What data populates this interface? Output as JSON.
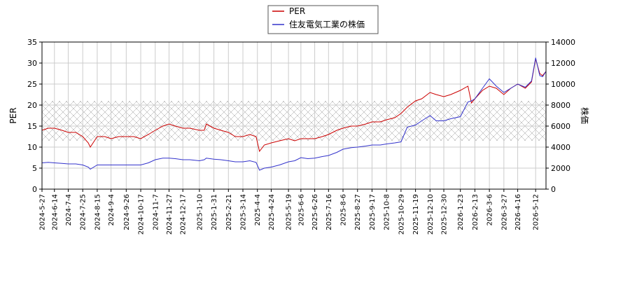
{
  "chart_data": {
    "type": "line",
    "legend": {
      "placement": "top-center",
      "entries": [
        {
          "label": "PER",
          "color": "#cc0000"
        },
        {
          "label": "住友電気工業の株価",
          "color": "#3333cc"
        }
      ]
    },
    "ylabel_left": "PER",
    "ylabel_right": "株価",
    "ylim_left": [
      0,
      35
    ],
    "ylim_right": [
      0,
      14000
    ],
    "yticks_left": [
      "0",
      "5",
      "10",
      "15",
      "20",
      "25",
      "30",
      "35"
    ],
    "yticks_right": [
      "0",
      "2000",
      "4000",
      "6000",
      "8000",
      "10000",
      "12000",
      "14000"
    ],
    "band": {
      "from": 11.5,
      "to": 21,
      "axis": "left"
    },
    "grid": true,
    "xlim": [
      "2024-05-27",
      "2026-05-27"
    ],
    "xticks": [
      "2024-5-27",
      "2024-6-14",
      "2024-7-4",
      "2024-7-25",
      "2024-8-15",
      "2024-9-4",
      "2024-9-26",
      "2024-10-17",
      "2024-11-7",
      "2024-11-27",
      "2024-12-17",
      "2025-1-10",
      "2025-1-31",
      "2025-2-21",
      "2025-3-14",
      "2025-4-4",
      "2025-4-24",
      "2025-5-19",
      "2025-6-6",
      "2025-6-26",
      "2025-7-16",
      "2025-8-6",
      "2025-8-27",
      "2025-9-17",
      "2025-10-8",
      "2025-10-29",
      "2025-11-19",
      "2025-12-10",
      "2025-12-30",
      "2026-1-23",
      "2026-2-13",
      "2026-3-6",
      "2026-3-27",
      "2026-4-16",
      "2026-5-12"
    ],
    "series": [
      {
        "name": "PER",
        "axis": "left",
        "color": "#cc0000",
        "x": [
          "2024-05-27",
          "2024-06-05",
          "2024-06-14",
          "2024-06-25",
          "2024-07-04",
          "2024-07-15",
          "2024-07-25",
          "2024-08-02",
          "2024-08-05",
          "2024-08-15",
          "2024-08-26",
          "2024-09-04",
          "2024-09-15",
          "2024-09-26",
          "2024-10-07",
          "2024-10-17",
          "2024-10-28",
          "2024-11-07",
          "2024-11-18",
          "2024-11-27",
          "2024-12-06",
          "2024-12-17",
          "2024-12-27",
          "2025-01-10",
          "2025-01-17",
          "2025-01-20",
          "2025-01-31",
          "2025-02-10",
          "2025-02-21",
          "2025-03-03",
          "2025-03-14",
          "2025-03-24",
          "2025-04-02",
          "2025-04-07",
          "2025-04-14",
          "2025-04-24",
          "2025-05-06",
          "2025-05-19",
          "2025-05-28",
          "2025-06-06",
          "2025-06-16",
          "2025-06-26",
          "2025-07-07",
          "2025-07-16",
          "2025-07-28",
          "2025-08-06",
          "2025-08-18",
          "2025-08-27",
          "2025-09-08",
          "2025-09-17",
          "2025-09-29",
          "2025-10-08",
          "2025-10-20",
          "2025-10-29",
          "2025-11-07",
          "2025-11-19",
          "2025-11-28",
          "2025-12-10",
          "2025-12-19",
          "2025-12-30",
          "2026-01-09",
          "2026-01-23",
          "2026-02-03",
          "2026-02-08",
          "2026-02-13",
          "2026-02-24",
          "2026-03-06",
          "2026-03-16",
          "2026-03-27",
          "2026-04-06",
          "2026-04-16",
          "2026-04-27",
          "2026-05-06",
          "2026-05-12",
          "2026-05-18",
          "2026-05-22",
          "2026-05-27"
        ],
        "values": [
          14.0,
          14.5,
          14.5,
          14.0,
          13.5,
          13.5,
          12.5,
          11.0,
          10.0,
          12.5,
          12.5,
          12.0,
          12.5,
          12.5,
          12.5,
          12.0,
          13.0,
          14.0,
          15.0,
          15.5,
          15.0,
          14.5,
          14.5,
          14.0,
          14.0,
          15.5,
          14.5,
          14.0,
          13.5,
          12.5,
          12.5,
          13.0,
          12.5,
          9.0,
          10.5,
          11.0,
          11.5,
          12.0,
          11.5,
          12.0,
          12.0,
          12.0,
          12.5,
          13.0,
          14.0,
          14.5,
          15.0,
          15.0,
          15.5,
          16.0,
          16.0,
          16.5,
          17.0,
          18.0,
          19.5,
          21.0,
          21.5,
          23.0,
          22.5,
          22.0,
          22.5,
          23.5,
          24.5,
          20.5,
          21.5,
          23.5,
          24.5,
          24.0,
          22.5,
          24.0,
          25.0,
          24.0,
          25.5,
          31.0,
          27.5,
          27.0,
          28.0
        ]
      },
      {
        "name": "住友電気工業の株価",
        "axis": "right",
        "color": "#3333cc",
        "x": [
          "2024-05-27",
          "2024-06-05",
          "2024-06-14",
          "2024-06-25",
          "2024-07-04",
          "2024-07-15",
          "2024-07-25",
          "2024-08-02",
          "2024-08-05",
          "2024-08-15",
          "2024-08-26",
          "2024-09-04",
          "2024-09-15",
          "2024-09-26",
          "2024-10-07",
          "2024-10-17",
          "2024-10-28",
          "2024-11-07",
          "2024-11-18",
          "2024-11-27",
          "2024-12-06",
          "2024-12-17",
          "2024-12-27",
          "2025-01-10",
          "2025-01-17",
          "2025-01-20",
          "2025-01-31",
          "2025-02-10",
          "2025-02-21",
          "2025-03-03",
          "2025-03-14",
          "2025-03-24",
          "2025-04-02",
          "2025-04-07",
          "2025-04-14",
          "2025-04-24",
          "2025-05-06",
          "2025-05-19",
          "2025-05-28",
          "2025-06-06",
          "2025-06-16",
          "2025-06-26",
          "2025-07-07",
          "2025-07-16",
          "2025-07-28",
          "2025-08-06",
          "2025-08-18",
          "2025-08-27",
          "2025-09-08",
          "2025-09-17",
          "2025-09-29",
          "2025-10-08",
          "2025-10-20",
          "2025-10-29",
          "2025-11-07",
          "2025-11-19",
          "2025-11-28",
          "2025-12-10",
          "2025-12-19",
          "2025-12-30",
          "2026-01-09",
          "2026-01-23",
          "2026-02-03",
          "2026-02-08",
          "2026-02-13",
          "2026-02-24",
          "2026-03-06",
          "2026-03-16",
          "2026-03-27",
          "2026-04-06",
          "2026-04-16",
          "2026-04-27",
          "2026-05-06",
          "2026-05-12",
          "2026-05-18",
          "2026-05-22",
          "2026-05-27"
        ],
        "values": [
          2500,
          2550,
          2500,
          2450,
          2400,
          2400,
          2300,
          2100,
          1900,
          2300,
          2300,
          2300,
          2300,
          2300,
          2300,
          2300,
          2500,
          2800,
          2950,
          2950,
          2900,
          2800,
          2800,
          2700,
          2800,
          2950,
          2850,
          2800,
          2700,
          2600,
          2600,
          2700,
          2550,
          1800,
          2000,
          2100,
          2300,
          2600,
          2700,
          3000,
          2900,
          2950,
          3100,
          3200,
          3500,
          3800,
          3950,
          4000,
          4100,
          4200,
          4200,
          4300,
          4400,
          4500,
          5900,
          6100,
          6500,
          7000,
          6500,
          6500,
          6700,
          6900,
          8300,
          8400,
          8600,
          9600,
          10500,
          9800,
          9200,
          9600,
          10000,
          9700,
          10300,
          12500,
          10800,
          10700,
          11200
        ]
      }
    ]
  }
}
